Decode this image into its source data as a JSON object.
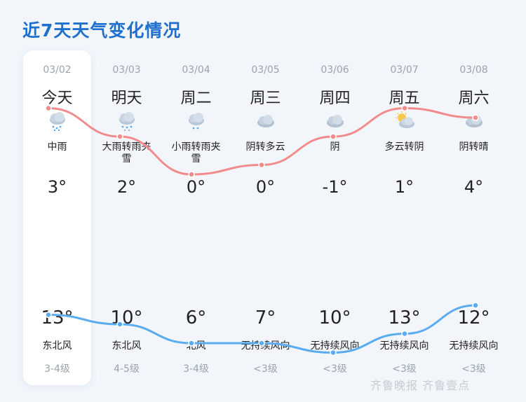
{
  "title": "近7天天气变化情况",
  "watermark": "齐鲁晚报 齐鲁壹点",
  "days": [
    {
      "date": "03/02",
      "name": "今天",
      "condition": "中雨",
      "icon": "rain-icon",
      "low": "3°",
      "high": "13°",
      "wind": "东北风",
      "level": "3-4级"
    },
    {
      "date": "03/03",
      "name": "明天",
      "condition": "大雨转雨夹雪",
      "icon": "sleet-icon",
      "low": "2°",
      "high": "10°",
      "wind": "东北风",
      "level": "4-5级"
    },
    {
      "date": "03/04",
      "name": "周二",
      "condition": "小雨转雨夹雪",
      "icon": "light-rain-icon",
      "low": "0°",
      "high": "6°",
      "wind": "北风",
      "level": "3-4级"
    },
    {
      "date": "03/05",
      "name": "周三",
      "condition": "阴转多云",
      "icon": "overcast-icon",
      "low": "0°",
      "high": "7°",
      "wind": "无持续风向",
      "level": "<3级"
    },
    {
      "date": "03/06",
      "name": "周四",
      "condition": "阴",
      "icon": "overcast-icon",
      "low": "-1°",
      "high": "10°",
      "wind": "无持续风向",
      "level": "<3级"
    },
    {
      "date": "03/07",
      "name": "周五",
      "condition": "多云转阴",
      "icon": "partly-cloudy-icon",
      "low": "1°",
      "high": "13°",
      "wind": "无持续风向",
      "level": "<3级"
    },
    {
      "date": "03/08",
      "name": "周六",
      "condition": "阴转晴",
      "icon": "overcast-icon",
      "low": "4°",
      "high": "12°",
      "wind": "无持续风向",
      "level": "<3级"
    }
  ],
  "chart_data": {
    "type": "line",
    "categories": [
      "03/02",
      "03/03",
      "03/04",
      "03/05",
      "03/06",
      "03/07",
      "03/08"
    ],
    "series": [
      {
        "values": [
          13,
          10,
          6,
          7,
          10,
          13,
          12
        ],
        "color": "#f28b8b"
      },
      {
        "values": [
          3,
          2,
          0,
          0,
          -1,
          1,
          4
        ],
        "color": "#5aabf0"
      }
    ]
  }
}
